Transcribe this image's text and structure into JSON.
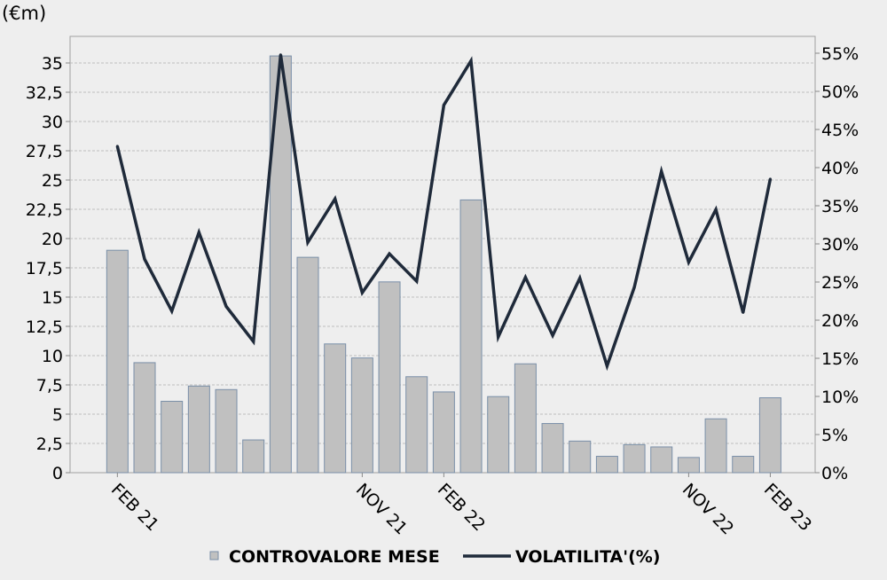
{
  "chart_data": {
    "type": "bar",
    "unit_label": "(€m)",
    "x_tick_labels": [
      "FEB 21",
      "NOV 21",
      "FEB 22",
      "NOV 22",
      "FEB 23"
    ],
    "x_tick_index": [
      0,
      9,
      12,
      21,
      24
    ],
    "y_left": {
      "min": 0,
      "max": 37.5,
      "ticks": [
        "0",
        "2,5",
        "5",
        "7,5",
        "10",
        "12,5",
        "15",
        "17,5",
        "20",
        "22,5",
        "25",
        "27,5",
        "30",
        "32,5",
        "35"
      ]
    },
    "y_right": {
      "min": 0,
      "max": 57.5,
      "ticks": [
        "0%",
        "5%",
        "10%",
        "15%",
        "20%",
        "25%",
        "30%",
        "35%",
        "40%",
        "45%",
        "50%",
        "55%"
      ]
    },
    "grid": true,
    "legend_position": "bottom",
    "series": [
      {
        "name": "CONTROVALORE MESE",
        "type": "bar",
        "axis": "left",
        "color": "#c0c0c0",
        "stroke": "#7a8fa8",
        "values": [
          19.0,
          9.4,
          6.1,
          7.4,
          7.1,
          2.8,
          35.6,
          18.4,
          11.0,
          9.8,
          16.3,
          8.2,
          6.9,
          23.3,
          6.5,
          9.3,
          4.2,
          2.7,
          1.4,
          2.4,
          2.2,
          1.3,
          4.6,
          1.4,
          6.4
        ]
      },
      {
        "name": "VOLATILITA'(%)",
        "type": "line",
        "axis": "right",
        "color": "#1f2a3a",
        "values": [
          42.8,
          28.0,
          21.2,
          31.5,
          21.8,
          17.2,
          54.8,
          30.2,
          35.9,
          23.6,
          28.7,
          25.1,
          48.2,
          54.0,
          17.8,
          25.6,
          18.0,
          25.5,
          14.0,
          24.3,
          39.5,
          27.6,
          34.5,
          21.0,
          38.5
        ]
      }
    ]
  }
}
